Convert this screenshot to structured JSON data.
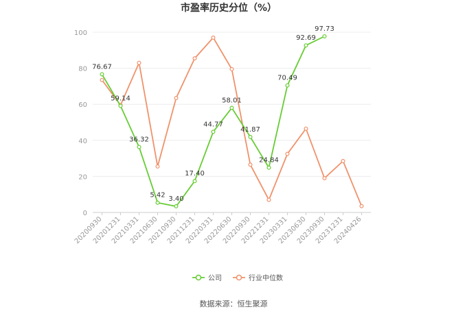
{
  "chart_data": {
    "type": "line",
    "title": "市盈率历史分位（%）",
    "categories": [
      "20200930",
      "20201231",
      "20210331",
      "20210630",
      "20210930",
      "20211231",
      "20220331",
      "20220630",
      "20220930",
      "20221231",
      "20230331",
      "20230630",
      "20230930",
      "20231231",
      "20240426"
    ],
    "ylim": [
      0,
      100
    ],
    "yticks": [
      0,
      20,
      40,
      60,
      80,
      100
    ],
    "grid": true,
    "legend_position": "bottom",
    "series": [
      {
        "name": "公司",
        "color": "#66cc33",
        "values": [
          76.67,
          59.14,
          36.32,
          5.42,
          3.4,
          17.4,
          44.77,
          58.01,
          41.87,
          24.84,
          70.49,
          92.69,
          97.73,
          null,
          null
        ],
        "data_labels": [
          "76.67",
          "59.14",
          "36.32",
          "5.42",
          "3.40",
          "17.40",
          "44.77",
          "58.01",
          "41.87",
          "24.84",
          "70.49",
          "92.69",
          "97.73",
          "",
          ""
        ]
      },
      {
        "name": "行业中位数",
        "color": "#f0916a",
        "values": [
          73.5,
          59.5,
          83.0,
          25.5,
          63.5,
          85.5,
          97.0,
          79.5,
          26.5,
          7.0,
          32.5,
          46.5,
          19.0,
          28.5,
          3.5
        ]
      }
    ],
    "source": "数据来源：恒生聚源"
  }
}
